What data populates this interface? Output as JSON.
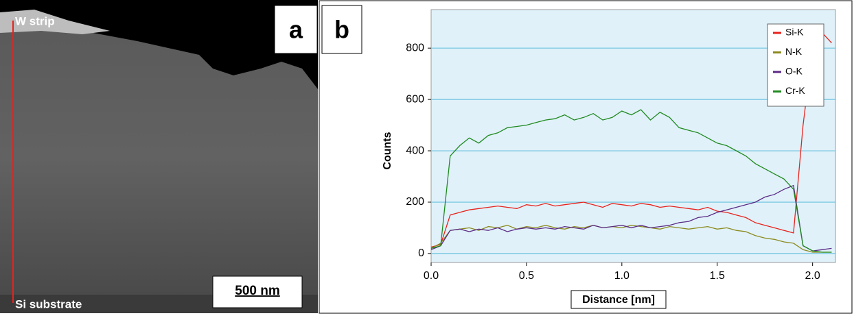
{
  "panel_a": {
    "label": "a",
    "top_annotation": "W strip",
    "bottom_annotation": "Si substrate",
    "scale_bar": "500 nm"
  },
  "panel_b": {
    "label": "b"
  },
  "chart_data": {
    "type": "line",
    "xlabel": "Distance [nm]",
    "ylabel": "Counts",
    "xlim": [
      0,
      2.12
    ],
    "ylim": [
      -35,
      950
    ],
    "xticks": [
      {
        "value": 0,
        "label": "0.0"
      },
      0.5,
      {
        "value": 1,
        "label": "1.0"
      },
      1.5,
      {
        "value": 2,
        "label": "2.0"
      }
    ],
    "yticks": [
      0,
      200,
      400,
      600,
      800
    ],
    "grid": true,
    "legend": "upper right",
    "x": [
      0,
      0.05,
      0.1,
      0.15,
      0.2,
      0.25,
      0.3,
      0.35,
      0.4,
      0.45,
      0.5,
      0.55,
      0.6,
      0.65,
      0.7,
      0.75,
      0.8,
      0.85,
      0.9,
      0.95,
      1,
      1.05,
      1.1,
      1.15,
      1.2,
      1.25,
      1.3,
      1.35,
      1.4,
      1.45,
      1.5,
      1.55,
      1.6,
      1.65,
      1.7,
      1.75,
      1.8,
      1.85,
      1.9,
      1.95,
      2,
      2.05,
      2.1
    ],
    "series": [
      {
        "name": "Si-K",
        "color": "#e8221c",
        "values": [
          25,
          35,
          150,
          160,
          170,
          175,
          180,
          185,
          180,
          175,
          190,
          185,
          195,
          185,
          190,
          195,
          200,
          190,
          180,
          195,
          190,
          185,
          195,
          190,
          180,
          185,
          180,
          175,
          170,
          180,
          165,
          160,
          150,
          140,
          120,
          110,
          100,
          90,
          80,
          500,
          800,
          860,
          820
        ]
      },
      {
        "name": "N-K",
        "color": "#8c8a1e",
        "values": [
          20,
          40,
          90,
          95,
          100,
          90,
          105,
          100,
          110,
          95,
          105,
          100,
          110,
          100,
          95,
          105,
          100,
          110,
          100,
          105,
          100,
          110,
          105,
          100,
          95,
          105,
          100,
          95,
          100,
          105,
          95,
          100,
          90,
          85,
          70,
          60,
          55,
          45,
          40,
          15,
          5,
          5,
          5
        ]
      },
      {
        "name": "O-K",
        "color": "#5b2a86",
        "values": [
          15,
          30,
          90,
          95,
          85,
          95,
          90,
          100,
          85,
          95,
          100,
          95,
          100,
          95,
          105,
          100,
          95,
          110,
          100,
          105,
          110,
          100,
          110,
          100,
          105,
          110,
          120,
          125,
          140,
          145,
          160,
          170,
          180,
          190,
          200,
          220,
          230,
          250,
          265,
          30,
          10,
          15,
          20
        ]
      },
      {
        "name": "Cr-K",
        "color": "#1f8a1f",
        "values": [
          20,
          30,
          380,
          420,
          450,
          430,
          460,
          470,
          490,
          495,
          500,
          510,
          520,
          525,
          540,
          520,
          530,
          545,
          520,
          530,
          555,
          540,
          560,
          520,
          550,
          530,
          490,
          480,
          470,
          450,
          430,
          420,
          400,
          380,
          350,
          330,
          310,
          290,
          250,
          30,
          10,
          5,
          5
        ]
      }
    ]
  }
}
